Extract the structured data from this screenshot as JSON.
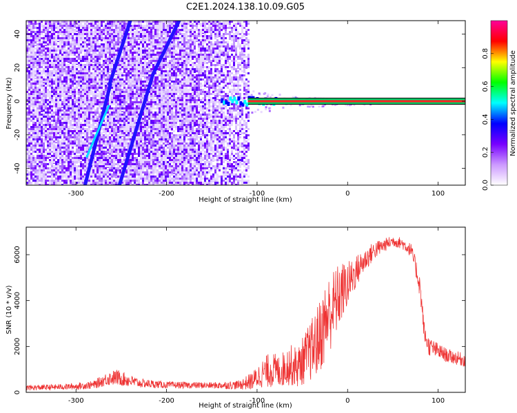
{
  "title": "C2E1.2024.138.10.09.G05",
  "chart_data": [
    {
      "type": "heatmap",
      "xlabel": "Height of straight line (km)",
      "ylabel": "Frequency (Hz)",
      "xlim": [
        -355,
        130
      ],
      "ylim": [
        -50,
        48
      ],
      "xticks": [
        -300,
        -200,
        -100,
        0,
        100
      ],
      "yticks": [
        -40,
        -20,
        0,
        20,
        40
      ],
      "colorbar": {
        "label": "Normalized spectral amplitude",
        "range": [
          0,
          1
        ],
        "ticks": [
          "0.0",
          "0.2",
          "0.4",
          "0.6",
          "0.8"
        ],
        "colors": [
          "#ffffff",
          "#cc99ff",
          "#7700ff",
          "#0000ff",
          "#00ffff",
          "#00ff00",
          "#ffff00",
          "#ff0000",
          "#ff0099"
        ]
      },
      "features": {
        "noise_region_x": [
          -355,
          -110
        ],
        "carrier_frequency_hz": 0,
        "carrier_x_start": -110,
        "streaks": [
          {
            "x": [
              -290,
              -262
            ],
            "y": [
              -50,
              10
            ]
          },
          {
            "x": [
              -263,
              -240
            ],
            "y": [
              10,
              48
            ]
          },
          {
            "x": [
              -252,
              -215
            ],
            "y": [
              -50,
              16
            ]
          },
          {
            "x": [
              -215,
              -186
            ],
            "y": [
              16,
              48
            ]
          }
        ]
      },
      "grid": false
    },
    {
      "type": "line",
      "xlabel": "Height of straight line (km)",
      "ylabel": "SNR (10 * v/v)",
      "xlim": [
        -355,
        130
      ],
      "ylim": [
        0,
        7200
      ],
      "xticks": [
        -300,
        -200,
        -100,
        0,
        100
      ],
      "yticks": [
        0,
        2000,
        4000,
        6000
      ],
      "series": [
        {
          "color": "#ee3333",
          "x": [
            -355,
            -330,
            -300,
            -280,
            -265,
            -255,
            -245,
            -230,
            -200,
            -150,
            -120,
            -105,
            -95,
            -85,
            -75,
            -65,
            -55,
            -45,
            -35,
            -28,
            -22,
            -15,
            -8,
            0,
            10,
            20,
            30,
            40,
            50,
            60,
            70,
            75,
            80,
            85,
            90,
            100,
            110,
            120,
            130
          ],
          "y": [
            200,
            220,
            260,
            330,
            600,
            650,
            550,
            400,
            320,
            300,
            320,
            500,
            800,
            1000,
            900,
            1200,
            1100,
            1600,
            2100,
            2700,
            3300,
            3800,
            4300,
            4700,
            5300,
            5800,
            6200,
            6400,
            6600,
            6500,
            6200,
            5500,
            4600,
            2500,
            2000,
            1800,
            1600,
            1500,
            1400
          ],
          "spread": [
            120,
            120,
            140,
            180,
            300,
            350,
            300,
            200,
            150,
            140,
            200,
            400,
            600,
            800,
            700,
            900,
            900,
            1200,
            1500,
            1700,
            1800,
            1600,
            1400,
            1000,
            700,
            500,
            400,
            300,
            250,
            250,
            300,
            400,
            500,
            400,
            400,
            350,
            300,
            300,
            300
          ]
        }
      ],
      "grid": false
    }
  ]
}
